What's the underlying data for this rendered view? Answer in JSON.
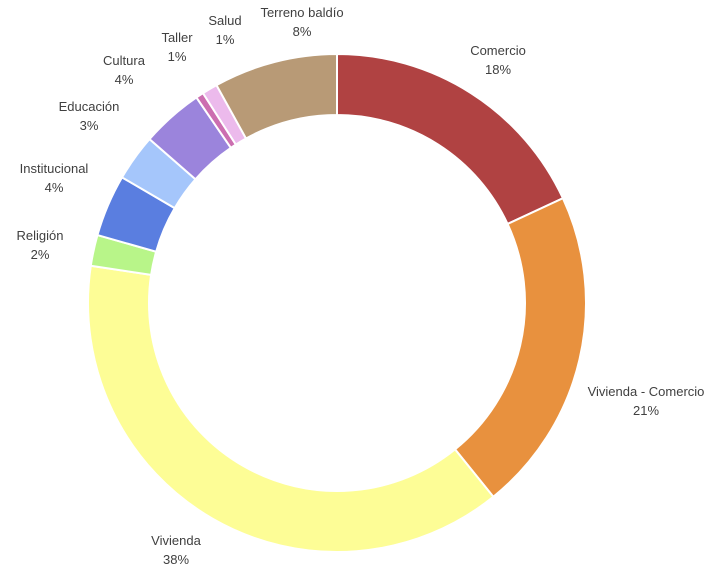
{
  "chart_data": {
    "type": "pie",
    "variant": "donut",
    "title": "",
    "legend": "none",
    "label_format": "category and percentage on slices",
    "start_angle_deg": 0,
    "direction": "clockwise",
    "slices": [
      {
        "label": "Comercio",
        "value": 18,
        "display": "18%",
        "color": "#b04242"
      },
      {
        "label": "Vivienda - Comercio",
        "value": 21,
        "display": "21%",
        "color": "#e8913e"
      },
      {
        "label": "Vivienda",
        "value": 38,
        "display": "38%",
        "color": "#fdfd96"
      },
      {
        "label": "Religión",
        "value": 2,
        "display": "2%",
        "color": "#b8f589"
      },
      {
        "label": "Institucional",
        "value": 4,
        "display": "4%",
        "color": "#5a7ee0"
      },
      {
        "label": "Educación",
        "value": 3,
        "display": "3%",
        "color": "#a5c6fb"
      },
      {
        "label": "Cultura",
        "value": 4,
        "display": "4%",
        "color": "#9b84dc"
      },
      {
        "label": "Taller",
        "value": 0.5,
        "display": "1%",
        "color": "#cc6eb0"
      },
      {
        "label": "Salud",
        "value": 1,
        "display": "1%",
        "color": "#ecbaec"
      },
      {
        "label": "Terreno baldío",
        "value": 8,
        "display": "8%",
        "color": "#b89a76"
      }
    ]
  }
}
